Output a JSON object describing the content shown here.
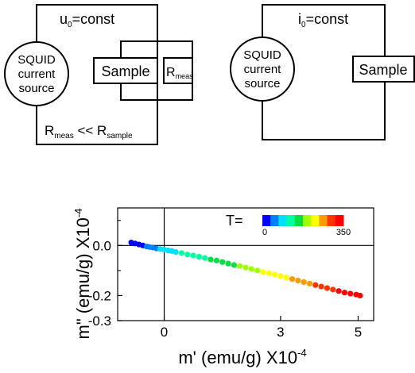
{
  "circuit_left": {
    "top_label": "u",
    "top_label_sub": "0",
    "top_label_suffix": "=const",
    "source_lines": [
      "SQUID",
      "current",
      "source"
    ],
    "sample_label": "Sample",
    "rmeas_label": "R",
    "rmeas_sub": "meas",
    "bottom_label": {
      "r1": "R",
      "r1_sub": "meas",
      "op": " << ",
      "r2": "R",
      "r2_sub": "sample"
    }
  },
  "circuit_right": {
    "top_label": "i",
    "top_label_sub": "0",
    "top_label_suffix": "=const",
    "source_lines": [
      "SQUID",
      "current",
      "source"
    ],
    "sample_label": "Sample"
  },
  "chart_data": {
    "type": "scatter",
    "xlabel": "m' (emu/g) X10",
    "xlabel_exp": "-4",
    "ylabel": "m\" (emu/g) X10",
    "ylabel_exp": "-4",
    "xlim": [
      -1.2,
      5.4
    ],
    "ylim": [
      -0.3,
      0.15
    ],
    "x_ticks": [
      0,
      3,
      5
    ],
    "y_ticks": [
      0.0,
      -0.2,
      -0.3
    ],
    "y_tick_labels": [
      "0.0",
      "-0.2",
      "-0.3"
    ],
    "y_minor_ticks": [
      0.1,
      -0.1
    ],
    "colorbar": {
      "label": "T=",
      "min_label": "0",
      "max_label": "350",
      "colors": [
        "#0000ff",
        "#0080ff",
        "#00e0ff",
        "#00ffa0",
        "#00e040",
        "#a0ff00",
        "#ffff00",
        "#ff9900",
        "#ff3300",
        "#ff0000"
      ]
    },
    "points": [
      {
        "x": -0.85,
        "y": 0.012,
        "T": 5
      },
      {
        "x": -0.75,
        "y": 0.008,
        "T": 12
      },
      {
        "x": -0.65,
        "y": 0.004,
        "T": 20
      },
      {
        "x": -0.55,
        "y": 0.0,
        "T": 28
      },
      {
        "x": -0.45,
        "y": -0.004,
        "T": 36
      },
      {
        "x": -0.38,
        "y": -0.006,
        "T": 42
      },
      {
        "x": -0.3,
        "y": -0.008,
        "T": 50
      },
      {
        "x": -0.2,
        "y": -0.012,
        "T": 60
      },
      {
        "x": -0.1,
        "y": -0.014,
        "T": 70
      },
      {
        "x": 0.0,
        "y": -0.016,
        "T": 80
      },
      {
        "x": 0.1,
        "y": -0.02,
        "T": 88
      },
      {
        "x": 0.2,
        "y": -0.022,
        "T": 95
      },
      {
        "x": 0.3,
        "y": -0.026,
        "T": 100
      },
      {
        "x": 0.45,
        "y": -0.03,
        "T": 105
      },
      {
        "x": 0.6,
        "y": -0.036,
        "T": 110
      },
      {
        "x": 0.75,
        "y": -0.04,
        "T": 118
      },
      {
        "x": 0.9,
        "y": -0.045,
        "T": 125
      },
      {
        "x": 1.05,
        "y": -0.05,
        "T": 132
      },
      {
        "x": 1.2,
        "y": -0.056,
        "T": 140
      },
      {
        "x": 1.35,
        "y": -0.06,
        "T": 150
      },
      {
        "x": 1.5,
        "y": -0.066,
        "T": 158
      },
      {
        "x": 1.65,
        "y": -0.072,
        "T": 165
      },
      {
        "x": 1.8,
        "y": -0.078,
        "T": 172
      },
      {
        "x": 1.95,
        "y": -0.082,
        "T": 180
      },
      {
        "x": 2.1,
        "y": -0.088,
        "T": 188
      },
      {
        "x": 2.25,
        "y": -0.094,
        "T": 195
      },
      {
        "x": 2.4,
        "y": -0.1,
        "T": 205
      },
      {
        "x": 2.55,
        "y": -0.106,
        "T": 212
      },
      {
        "x": 2.7,
        "y": -0.11,
        "T": 220
      },
      {
        "x": 2.85,
        "y": -0.116,
        "T": 228
      },
      {
        "x": 3.0,
        "y": -0.122,
        "T": 236
      },
      {
        "x": 3.15,
        "y": -0.128,
        "T": 244
      },
      {
        "x": 3.3,
        "y": -0.134,
        "T": 252
      },
      {
        "x": 3.45,
        "y": -0.14,
        "T": 260
      },
      {
        "x": 3.6,
        "y": -0.146,
        "T": 268
      },
      {
        "x": 3.75,
        "y": -0.152,
        "T": 276
      },
      {
        "x": 3.9,
        "y": -0.158,
        "T": 284
      },
      {
        "x": 4.05,
        "y": -0.164,
        "T": 292
      },
      {
        "x": 4.2,
        "y": -0.17,
        "T": 300
      },
      {
        "x": 4.35,
        "y": -0.176,
        "T": 308
      },
      {
        "x": 4.5,
        "y": -0.182,
        "T": 316
      },
      {
        "x": 4.65,
        "y": -0.188,
        "T": 324
      },
      {
        "x": 4.8,
        "y": -0.192,
        "T": 332
      },
      {
        "x": 4.95,
        "y": -0.196,
        "T": 340
      },
      {
        "x": 5.05,
        "y": -0.2,
        "T": 348
      }
    ]
  }
}
